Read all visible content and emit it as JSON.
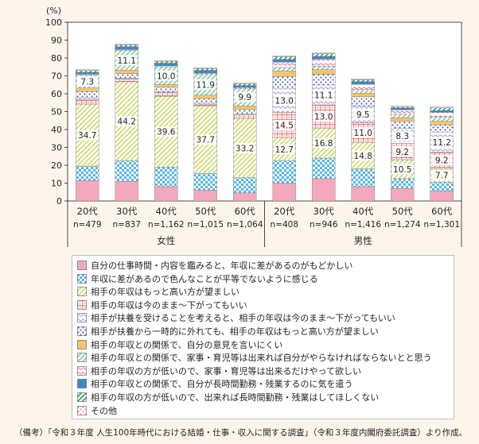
{
  "chart_data": {
    "type": "bar",
    "stacked": true,
    "yunit": "(%)",
    "ylim": [
      0,
      100
    ],
    "yticks": [
      0,
      10,
      20,
      30,
      40,
      50,
      60,
      70,
      80,
      90,
      100
    ],
    "grid": false,
    "groups": [
      {
        "label": "女性",
        "categories": [
          "20代",
          "30代",
          "40代",
          "50代",
          "60代"
        ]
      },
      {
        "label": "男性",
        "categories": [
          "20代",
          "30代",
          "40代",
          "50代",
          "60代"
        ]
      }
    ],
    "categories": [
      "20代",
      "30代",
      "40代",
      "50代",
      "60代",
      "20代",
      "30代",
      "40代",
      "50代",
      "60代"
    ],
    "sample_sizes": [
      "n=479",
      "n=837",
      "n=1,162",
      "n=1,015",
      "n=1,064",
      "n=408",
      "n=946",
      "n=1,416",
      "n=1,274",
      "n=1,301"
    ],
    "series": [
      {
        "name": "自分の仕事時間・内容を鑑みると、年収に差があるのがもどかしい",
        "color": "#f3a9bd",
        "pattern": "solid",
        "values": [
          11.5,
          11.0,
          8.0,
          6.0,
          4.5,
          10.0,
          12.5,
          8.0,
          7.0,
          5.5
        ]
      },
      {
        "name": "年収に差があるので色んなことが平等でないように感じる",
        "color": "#57b6e6",
        "pattern": "check",
        "values": [
          8.0,
          11.5,
          11.0,
          9.5,
          8.5,
          12.5,
          11.5,
          10.0,
          5.5,
          5.0
        ]
      },
      {
        "name": "相手の年収はもっと高い方が望ましい",
        "color": "#cdd86a",
        "pattern": "hatch",
        "values": [
          34.7,
          44.2,
          39.6,
          37.7,
          33.2,
          12.7,
          16.8,
          14.8,
          10.5,
          7.7
        ]
      },
      {
        "name": "相手の年収は今のまま～下がってもいい",
        "color": "#ee7e7e",
        "pattern": "grid",
        "values": [
          2.5,
          1.5,
          2.0,
          1.0,
          2.0,
          14.5,
          13.0,
          11.0,
          9.2,
          9.2
        ]
      },
      {
        "name": "相手が扶養を受けることを考えると、相手の年収は今のまま～下がってもいい",
        "color": "#a89be0",
        "pattern": "wave",
        "values": [
          1.0,
          0.5,
          0.5,
          0.5,
          0.5,
          13.0,
          11.1,
          9.5,
          8.3,
          11.2
        ]
      },
      {
        "name": "相手が扶養から一時的に外れても、相手の年収はもっと高い方が望ましい",
        "color": "#4f66c9",
        "pattern": "dots",
        "values": [
          3.5,
          2.5,
          2.5,
          2.5,
          2.5,
          7.0,
          6.0,
          5.0,
          4.0,
          4.0
        ]
      },
      {
        "name": "相手の年収との関係で、自分の意見を言いにくい",
        "color": "#f6c46b",
        "pattern": "solid",
        "values": [
          2.0,
          2.0,
          1.5,
          2.0,
          2.0,
          3.0,
          2.5,
          2.0,
          2.0,
          2.0
        ]
      },
      {
        "name": "相手の年収との関係で、家事・育児等は出来れば自分がやらなければならないとと思う",
        "color": "#84cba5",
        "pattern": "hatch",
        "values": [
          7.3,
          11.1,
          10.0,
          11.9,
          9.9,
          2.0,
          2.0,
          2.0,
          2.0,
          2.5
        ]
      },
      {
        "name": "相手の年収の方が低いので、家事・育児等は出来るだけやって欲しい",
        "color": "#ef6f9a",
        "pattern": "wave",
        "values": [
          0.5,
          0.5,
          0.5,
          0.5,
          0.5,
          3.0,
          4.0,
          3.0,
          2.5,
          2.5
        ]
      },
      {
        "name": "相手の年収との関係で、自分が長時間勤務・残業するのに気を遣う",
        "color": "#3a88c9",
        "pattern": "solid",
        "values": [
          1.0,
          1.5,
          1.5,
          1.5,
          1.0,
          1.5,
          1.5,
          1.5,
          1.0,
          1.0
        ]
      },
      {
        "name": "相手の年収の方が低いので、出来れば長時間勤務・残業はしてほしくない",
        "color": "#2d9b6d",
        "pattern": "hatch",
        "values": [
          1.0,
          1.0,
          1.0,
          1.0,
          1.0,
          1.5,
          1.5,
          1.0,
          0.5,
          1.5
        ]
      },
      {
        "name": "その他",
        "color": "#f28d8d",
        "pattern": "dots",
        "values": [
          0.5,
          0.5,
          0.5,
          0.5,
          0.5,
          0.5,
          0.5,
          0.5,
          0.5,
          0.5
        ]
      }
    ],
    "data_labels": {
      "female": {
        "series_2": [
          "34.7",
          "44.2",
          "39.6",
          "37.7",
          "33.2"
        ],
        "series_7": [
          "7.3",
          "11.1",
          "10.0",
          "11.9",
          "9.9"
        ]
      },
      "male": {
        "series_2": [
          "12.7",
          "16.8",
          "14.8",
          "10.5",
          "7.7"
        ],
        "series_3": [
          "14.5",
          "13.0",
          "11.0",
          "9.2",
          "9.2"
        ],
        "series_4": [
          "13.0",
          "11.1",
          "9.5",
          "8.3",
          "11.2"
        ]
      }
    },
    "legend_position": "bottom"
  },
  "note": "（備考）「令和３年度 人生100年時代における結婚・仕事・収入に関する調査」（令和３年度内閣府委託調査）より作成。"
}
